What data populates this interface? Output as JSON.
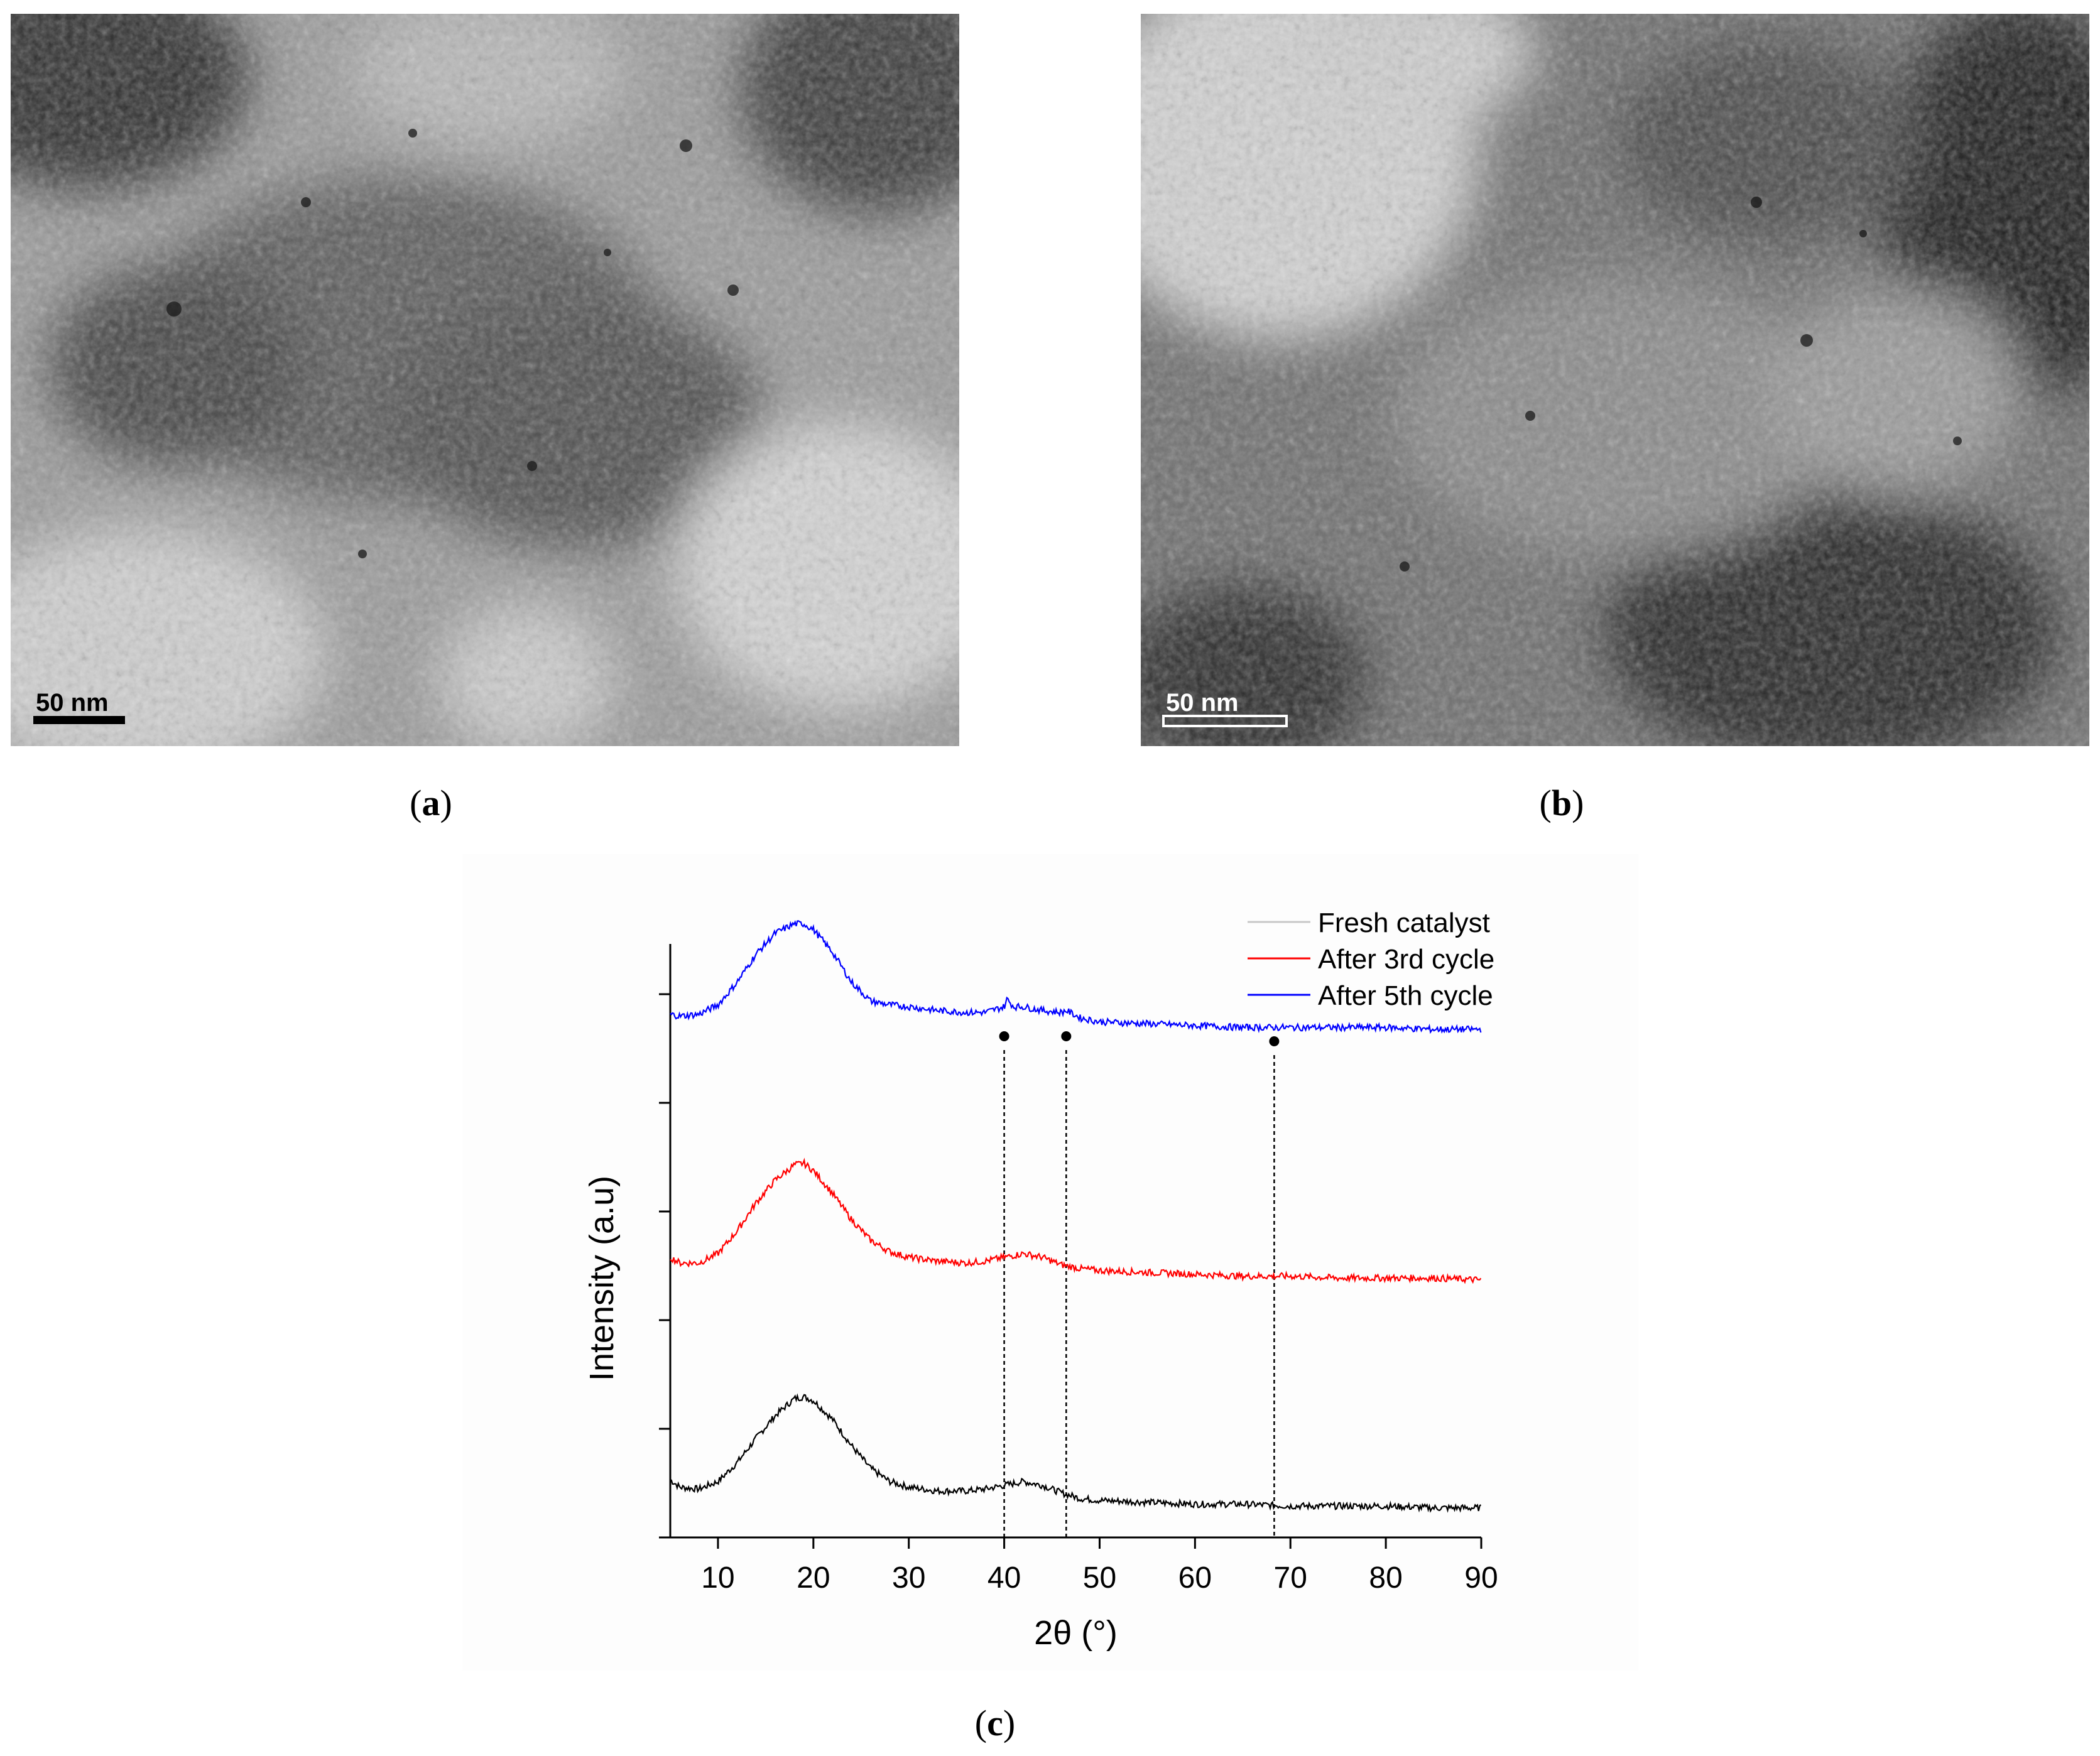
{
  "panels": {
    "a": {
      "caption_open": "(",
      "caption_letter": "a",
      "caption_close": ")",
      "scale_label": "50 nm",
      "scale_color": "#000000"
    },
    "b": {
      "caption_open": "(",
      "caption_letter": "b",
      "caption_close": ")",
      "scale_label": "50 nm",
      "scale_color": "#ffffff"
    },
    "c": {
      "caption_open": "(",
      "caption_letter": "c",
      "caption_close": ")"
    }
  },
  "chart_data": {
    "type": "line",
    "title": "",
    "xlabel": "2θ (°)",
    "ylabel": "Intensity (a.u)",
    "xlim": [
      5,
      90
    ],
    "xticks": [
      10,
      20,
      30,
      40,
      50,
      60,
      70,
      80,
      90
    ],
    "y_tick_labels": "none",
    "grid": false,
    "legend_position": "top-right",
    "series": [
      {
        "name": "Fresh catalyst",
        "legend_color": "#c8c8c8",
        "color": "#000000",
        "offset": 0,
        "x": [
          5,
          6,
          8,
          10,
          12,
          14,
          16,
          18,
          19,
          20,
          22,
          24,
          26,
          28,
          30,
          33,
          36,
          38,
          40,
          42,
          44,
          46,
          48,
          50,
          55,
          60,
          65,
          70,
          75,
          80,
          85,
          90
        ],
        "y": [
          0.18,
          0.14,
          0.13,
          0.17,
          0.27,
          0.4,
          0.52,
          0.61,
          0.62,
          0.6,
          0.5,
          0.36,
          0.24,
          0.17,
          0.14,
          0.12,
          0.12,
          0.13,
          0.15,
          0.17,
          0.15,
          0.11,
          0.08,
          0.07,
          0.06,
          0.05,
          0.05,
          0.04,
          0.04,
          0.04,
          0.03,
          0.03
        ]
      },
      {
        "name": "After 3rd cycle",
        "legend_color": "#ff0000",
        "color": "#ff0000",
        "offset": 1.2,
        "x": [
          5,
          6,
          8,
          10,
          12,
          14,
          16,
          18,
          19,
          20,
          22,
          24,
          26,
          28,
          30,
          33,
          36,
          38,
          40,
          42,
          44,
          46,
          48,
          50,
          55,
          60,
          65,
          70,
          75,
          80,
          85,
          90
        ],
        "y": [
          0.16,
          0.13,
          0.13,
          0.18,
          0.3,
          0.45,
          0.57,
          0.65,
          0.66,
          0.62,
          0.5,
          0.36,
          0.25,
          0.19,
          0.16,
          0.14,
          0.13,
          0.14,
          0.16,
          0.18,
          0.16,
          0.12,
          0.1,
          0.09,
          0.08,
          0.07,
          0.06,
          0.06,
          0.05,
          0.05,
          0.05,
          0.04
        ]
      },
      {
        "name": "After 5th cycle",
        "legend_color": "#0000ff",
        "color": "#0000ff",
        "offset": 2.6,
        "x": [
          5,
          6,
          8,
          10,
          12,
          14,
          16,
          18,
          19,
          20,
          22,
          24,
          26,
          28,
          30,
          33,
          36,
          38,
          40,
          40.3,
          41,
          42,
          44,
          46,
          46.5,
          48,
          50,
          55,
          60,
          65,
          68,
          70,
          75,
          80,
          85,
          90
        ],
        "y": [
          0.05,
          0.04,
          0.05,
          0.1,
          0.22,
          0.37,
          0.48,
          0.53,
          0.53,
          0.5,
          0.38,
          0.22,
          0.12,
          0.1,
          0.09,
          0.07,
          0.06,
          0.06,
          0.09,
          0.13,
          0.09,
          0.09,
          0.07,
          0.06,
          0.07,
          0.03,
          0.01,
          0.0,
          -0.01,
          -0.02,
          -0.02,
          -0.02,
          -0.02,
          -0.02,
          -0.03,
          -0.03
        ]
      }
    ],
    "reference_lines": [
      {
        "x": 40.0,
        "marker": "dot"
      },
      {
        "x": 46.5,
        "marker": "dot"
      },
      {
        "x": 68.3,
        "marker": "dot"
      }
    ]
  }
}
